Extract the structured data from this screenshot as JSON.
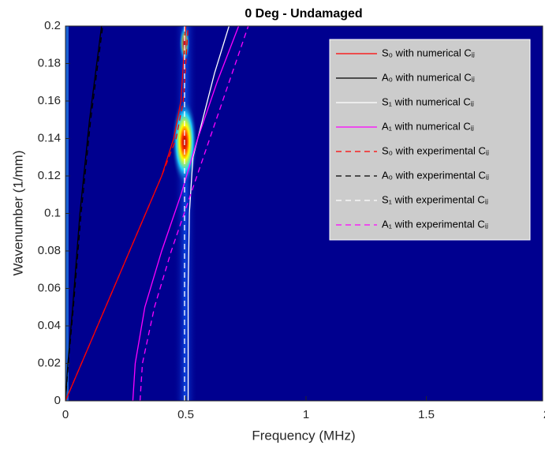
{
  "chart_data": {
    "type": "line",
    "title": "0 Deg - Undamaged",
    "x_label": "Frequency (MHz)",
    "y_label": "Wavenumber (1/mm)",
    "xlim": [
      0,
      2
    ],
    "ylim": [
      0,
      0.2
    ],
    "xticks": [
      0,
      0.5,
      1,
      1.5,
      2
    ],
    "yticks": [
      0,
      0.02,
      0.04,
      0.06,
      0.08,
      0.1,
      0.12,
      0.14,
      0.16,
      0.18,
      0.2
    ],
    "legend": "upper right",
    "series": [
      {
        "name": "S₀ with numerical Cᵢⱼ",
        "color": "#ff0000",
        "linestyle": "solid",
        "x": [
          0,
          0.1,
          0.2,
          0.3,
          0.4,
          0.45,
          0.48,
          0.5
        ],
        "values": [
          0,
          0.03,
          0.06,
          0.09,
          0.12,
          0.14,
          0.16,
          0.2
        ]
      },
      {
        "name": "A₀ with numerical Cᵢⱼ",
        "color": "#000000",
        "linestyle": "solid",
        "x": [
          0,
          0.01,
          0.03,
          0.06,
          0.1,
          0.15
        ],
        "values": [
          0,
          0.02,
          0.05,
          0.1,
          0.15,
          0.2
        ]
      },
      {
        "name": "S₁ with numerical Cᵢⱼ",
        "color": "#ffffff",
        "linestyle": "solid",
        "x": [
          0.51,
          0.51,
          0.515,
          0.53,
          0.57,
          0.62,
          0.68
        ],
        "values": [
          0,
          0.06,
          0.1,
          0.13,
          0.15,
          0.175,
          0.2
        ]
      },
      {
        "name": "A₁ with numerical Cᵢⱼ",
        "color": "#ff00ff",
        "linestyle": "solid",
        "x": [
          0.28,
          0.29,
          0.33,
          0.4,
          0.48,
          0.55,
          0.63,
          0.72
        ],
        "values": [
          0,
          0.02,
          0.05,
          0.08,
          0.11,
          0.14,
          0.17,
          0.2
        ]
      },
      {
        "name": "S₀ with experimental Cᵢⱼ",
        "color": "#ff0000",
        "linestyle": "dashed",
        "x": [
          0,
          0.1,
          0.2,
          0.3,
          0.4,
          0.46,
          0.49,
          0.51
        ],
        "values": [
          0,
          0.03,
          0.06,
          0.09,
          0.12,
          0.14,
          0.16,
          0.2
        ]
      },
      {
        "name": "A₀ with experimental Cᵢⱼ",
        "color": "#000000",
        "linestyle": "dashed",
        "x": [
          0,
          0.012,
          0.033,
          0.065,
          0.105,
          0.155
        ],
        "values": [
          0,
          0.02,
          0.05,
          0.1,
          0.15,
          0.2
        ]
      },
      {
        "name": "S₁ with experimental Cᵢⱼ",
        "color": "#ffffff",
        "linestyle": "dashed",
        "x": [
          0.495,
          0.495
        ],
        "values": [
          0,
          0.2
        ]
      },
      {
        "name": "A₁ with experimental Cᵢⱼ",
        "color": "#ff00ff",
        "linestyle": "dashed",
        "x": [
          0.31,
          0.32,
          0.37,
          0.44,
          0.52,
          0.6,
          0.68,
          0.76
        ],
        "values": [
          0,
          0.02,
          0.05,
          0.08,
          0.11,
          0.14,
          0.17,
          0.2
        ]
      }
    ]
  }
}
